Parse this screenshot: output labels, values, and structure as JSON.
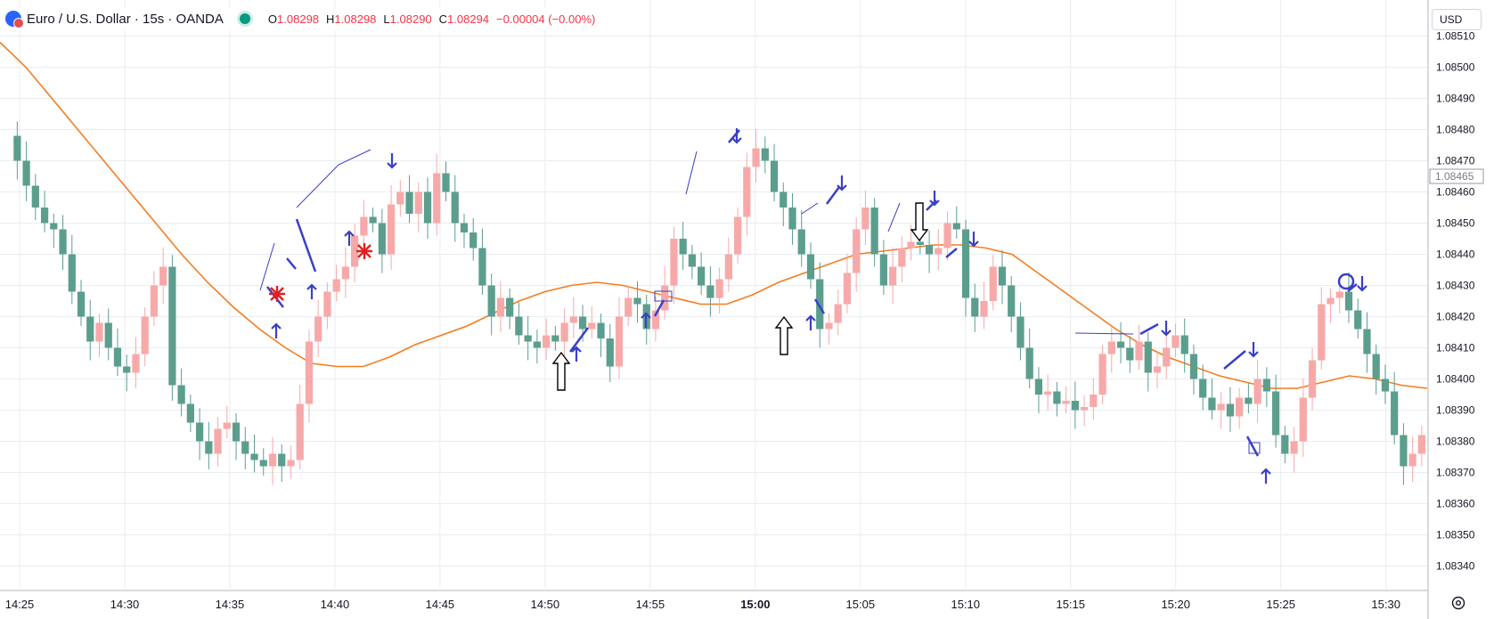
{
  "header": {
    "symbol": "Euro / U.S. Dollar · 15s · OANDA",
    "o_label": "O",
    "o": "1.08298",
    "h_label": "H",
    "h": "1.08298",
    "l_label": "L",
    "l": "1.08290",
    "c_label": "C",
    "c": "1.08294",
    "change": "−0.00004 (−0.00%)"
  },
  "currency_button": "USD",
  "colors": {
    "up": "#f7a9a9",
    "down": "#5b9e8e",
    "ma": "#f57c1f",
    "grid": "#e9ecf1",
    "annot": "#3a3fc7",
    "star": "#e02020"
  },
  "chart_data": {
    "type": "candlestick",
    "yticks": [
      "1.08510",
      "1.08500",
      "1.08490",
      "1.08480",
      "1.08470",
      "1.08460",
      "1.08450",
      "1.08440",
      "1.08430",
      "1.08420",
      "1.08410",
      "1.08400",
      "1.08390",
      "1.08380",
      "1.08370",
      "1.08360",
      "1.08350",
      "1.08340"
    ],
    "ylim": [
      1.08333,
      1.08513
    ],
    "xlabels": [
      "14:25",
      "14:30",
      "14:35",
      "14:40",
      "14:45",
      "14:50",
      "14:55",
      "15:00",
      "15:05",
      "15:10",
      "15:15",
      "15:20",
      "15:25",
      "15:30"
    ],
    "last_price_label": "1.08465",
    "ma_label": "",
    "price_path": [
      1.08478,
      1.0847,
      1.08462,
      1.08455,
      1.0845,
      1.08448,
      1.0844,
      1.08428,
      1.0842,
      1.08412,
      1.08418,
      1.0841,
      1.08404,
      1.08402,
      1.08408,
      1.0842,
      1.0843,
      1.08436,
      1.08398,
      1.08392,
      1.08386,
      1.0838,
      1.08376,
      1.08384,
      1.08386,
      1.0838,
      1.08376,
      1.08374,
      1.08372,
      1.08376,
      1.08372,
      1.08374,
      1.08392,
      1.08412,
      1.0842,
      1.08428,
      1.08432,
      1.08436,
      1.08446,
      1.08452,
      1.0845,
      1.0844,
      1.08456,
      1.0846,
      1.08453,
      1.0846,
      1.0845,
      1.08466,
      1.0846,
      1.0845,
      1.08447,
      1.08442,
      1.0843,
      1.0842,
      1.08426,
      1.0842,
      1.08414,
      1.08412,
      1.0841,
      1.08414,
      1.08412,
      1.08418,
      1.0842,
      1.08416,
      1.08418,
      1.08413,
      1.08404,
      1.0842,
      1.08426,
      1.08424,
      1.08416,
      1.08422,
      1.0843,
      1.08445,
      1.0844,
      1.08436,
      1.0843,
      1.08426,
      1.08432,
      1.0844,
      1.08452,
      1.08468,
      1.08474,
      1.0847,
      1.0846,
      1.08455,
      1.08448,
      1.0844,
      1.08432,
      1.08416,
      1.08418,
      1.08424,
      1.08434,
      1.08448,
      1.08455,
      1.0844,
      1.0843,
      1.08436,
      1.08442,
      1.08444,
      1.08443,
      1.0844,
      1.08442,
      1.0845,
      1.08448,
      1.08426,
      1.0842,
      1.08425,
      1.08436,
      1.0843,
      1.0842,
      1.0841,
      1.084,
      1.08395,
      1.08396,
      1.08392,
      1.08393,
      1.0839,
      1.08391,
      1.08395,
      1.08408,
      1.08412,
      1.0841,
      1.08406,
      1.08412,
      1.08402,
      1.08404,
      1.0841,
      1.08414,
      1.08408,
      1.084,
      1.08394,
      1.0839,
      1.08392,
      1.08388,
      1.08394,
      1.08392,
      1.084,
      1.08396,
      1.08382,
      1.08376,
      1.0838,
      1.08394,
      1.08406,
      1.08424,
      1.08426,
      1.08428,
      1.08422,
      1.08416,
      1.08408,
      1.084,
      1.08396,
      1.08382,
      1.08372,
      1.08376,
      1.08382
    ],
    "ma_path": [
      1.08508,
      1.085,
      1.0849,
      1.0848,
      1.0847,
      1.0846,
      1.0845,
      1.0844,
      1.08431,
      1.08423,
      1.08416,
      1.0841,
      1.08405,
      1.08404,
      1.08404,
      1.08407,
      1.08411,
      1.08414,
      1.08417,
      1.08421,
      1.08425,
      1.08428,
      1.0843,
      1.08431,
      1.0843,
      1.08428,
      1.08426,
      1.08424,
      1.08424,
      1.08427,
      1.08431,
      1.08434,
      1.08437,
      1.0844,
      1.08441,
      1.08442,
      1.08443,
      1.08443,
      1.08442,
      1.0844,
      1.08434,
      1.08428,
      1.08422,
      1.08416,
      1.08411,
      1.08407,
      1.08404,
      1.08401,
      1.08399,
      1.08397,
      1.08397,
      1.08399,
      1.08401,
      1.084,
      1.08398,
      1.08397
    ]
  }
}
